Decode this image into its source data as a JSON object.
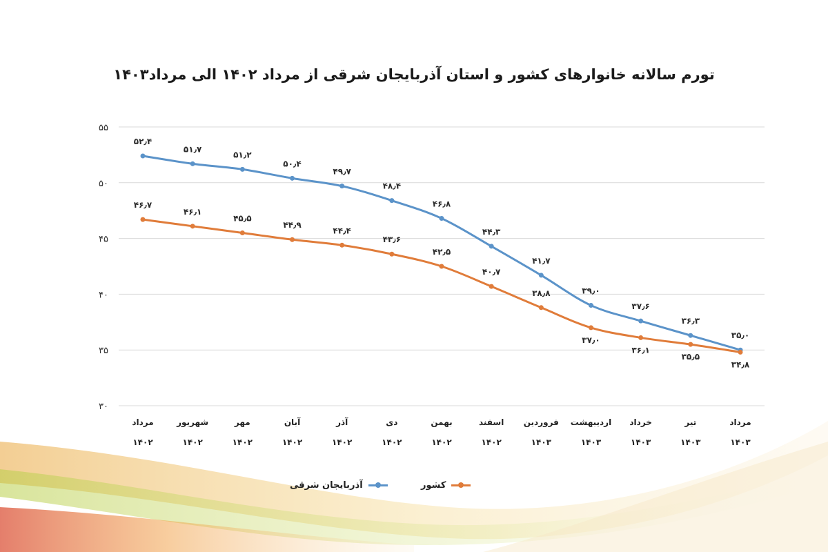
{
  "chart_data": {
    "type": "line",
    "title": "تورم سالانه خانوارهای کشور و استان آذربایجان شرقی از مرداد ۱۴۰۲ الی مرداد۱۴۰۳",
    "categories": [
      [
        "مرداد",
        "۱۴۰۲"
      ],
      [
        "شهریور",
        "۱۴۰۲"
      ],
      [
        "مهر",
        "۱۴۰۲"
      ],
      [
        "آبان",
        "۱۴۰۲"
      ],
      [
        "آذر",
        "۱۴۰۲"
      ],
      [
        "دی",
        "۱۴۰۲"
      ],
      [
        "بهمن",
        "۱۴۰۲"
      ],
      [
        "اسفند",
        "۱۴۰۲"
      ],
      [
        "فروردین",
        "۱۴۰۳"
      ],
      [
        "اردیبهشت",
        "۱۴۰۳"
      ],
      [
        "خرداد",
        "۱۴۰۳"
      ],
      [
        "تیر",
        "۱۴۰۳"
      ],
      [
        "مرداد",
        "۱۴۰۳"
      ]
    ],
    "series": [
      {
        "name": "آذربایجان شرقی",
        "color": "#5b93c9",
        "values": [
          52.4,
          51.7,
          51.2,
          50.4,
          49.7,
          48.4,
          46.8,
          44.3,
          41.7,
          39.0,
          37.6,
          36.3,
          35.0
        ],
        "labels": [
          "۵۲٫۴",
          "۵۱٫۷",
          "۵۱٫۲",
          "۵۰٫۴",
          "۴۹٫۷",
          "۴۸٫۴",
          "۴۶٫۸",
          "۴۴٫۳",
          "۴۱٫۷",
          "۳۹٫۰",
          "۳۷٫۶",
          "۳۶٫۳",
          "۳۵٫۰"
        ]
      },
      {
        "name": "کشور",
        "color": "#e07c3a",
        "values": [
          46.7,
          46.1,
          45.5,
          44.9,
          44.4,
          43.6,
          42.5,
          40.7,
          38.8,
          37.0,
          36.1,
          35.5,
          34.8
        ],
        "labels": [
          "۴۶٫۷",
          "۴۶٫۱",
          "۴۵٫۵",
          "۴۴٫۹",
          "۴۴٫۴",
          "۴۳٫۶",
          "۴۲٫۵",
          "۴۰٫۷",
          "۳۸٫۸",
          "۳۷٫۰",
          "۳۶٫۱",
          "۳۵٫۵",
          "۳۴٫۸"
        ]
      }
    ],
    "ylim": [
      30,
      55
    ],
    "y_ticks": [
      {
        "value": 55,
        "label": "۵۵"
      },
      {
        "value": 50,
        "label": "۵۰"
      },
      {
        "value": 45,
        "label": "۴۵"
      },
      {
        "value": 40,
        "label": "۴۰"
      },
      {
        "value": 35,
        "label": "۳۵"
      },
      {
        "value": 30,
        "label": "۳۰"
      }
    ],
    "grid": true,
    "legend_position": "bottom"
  }
}
